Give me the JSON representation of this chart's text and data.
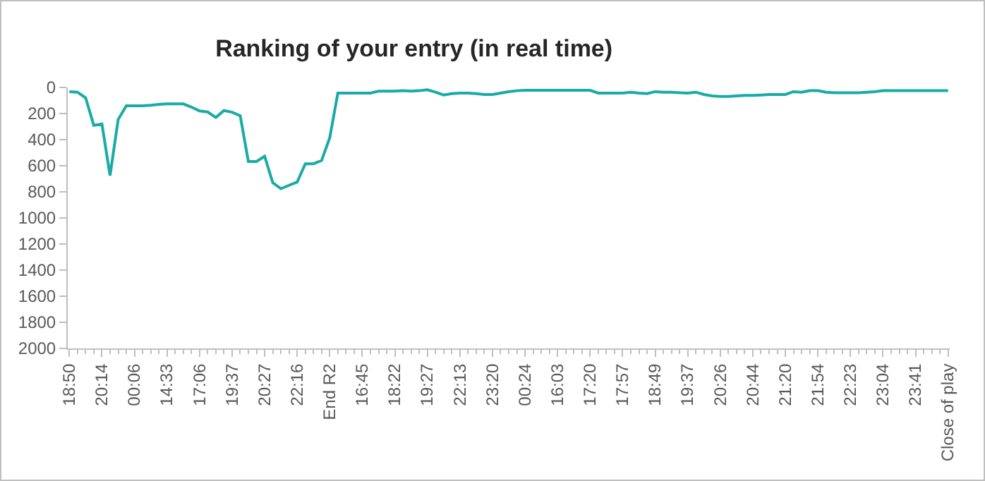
{
  "chart_data": {
    "type": "line",
    "title": "Ranking of your entry (in real time)",
    "categories": [
      "18:50",
      null,
      null,
      null,
      "20:14",
      null,
      null,
      null,
      "00:06",
      null,
      null,
      null,
      "14:33",
      null,
      null,
      null,
      "17:06",
      null,
      null,
      null,
      "19:37",
      null,
      null,
      null,
      "20:27",
      null,
      null,
      null,
      "22:16",
      null,
      null,
      null,
      "End R2",
      null,
      null,
      null,
      "16:45",
      null,
      null,
      null,
      "18:22",
      null,
      null,
      null,
      "19:27",
      null,
      null,
      null,
      "22:13",
      null,
      null,
      null,
      "23:20",
      null,
      null,
      null,
      "00:24",
      null,
      null,
      null,
      "16:03",
      null,
      null,
      null,
      "17:20",
      null,
      null,
      null,
      "17:57",
      null,
      null,
      null,
      "18:49",
      null,
      null,
      null,
      "19:37",
      null,
      null,
      null,
      "20:26",
      null,
      null,
      null,
      "20:44",
      null,
      null,
      null,
      "21:20",
      null,
      null,
      null,
      "21:54",
      null,
      null,
      null,
      "22:23",
      null,
      null,
      null,
      "23:04",
      null,
      null,
      null,
      "23:41",
      null,
      null,
      null,
      "Close of play"
    ],
    "series": [
      {
        "color": "#1aaba6",
        "values": [
          32,
          36,
          80,
          290,
          280,
          675,
          245,
          140,
          140,
          140,
          137,
          130,
          126,
          126,
          126,
          150,
          180,
          188,
          230,
          177,
          190,
          217,
          567,
          567,
          527,
          730,
          776,
          750,
          725,
          585,
          585,
          560,
          386,
          43,
          43,
          43,
          43,
          43,
          29,
          29,
          29,
          25,
          29,
          25,
          18,
          36,
          58,
          47,
          43,
          43,
          47,
          54,
          54,
          43,
          32,
          25,
          22,
          22,
          22,
          22,
          22,
          22,
          22,
          22,
          22,
          43,
          43,
          43,
          43,
          36,
          43,
          47,
          32,
          36,
          36,
          40,
          43,
          36,
          54,
          65,
          69,
          69,
          65,
          61,
          61,
          58,
          54,
          54,
          54,
          32,
          36,
          25,
          25,
          36,
          40,
          40,
          40,
          40,
          36,
          32,
          25,
          25,
          25,
          25,
          25,
          25,
          25,
          25,
          25
        ]
      }
    ],
    "ylim": [
      2000,
      0
    ],
    "yticks": [
      0,
      200,
      400,
      600,
      800,
      1000,
      1200,
      1400,
      1600,
      1800,
      2000
    ],
    "grid": false,
    "legend": false,
    "marker": "none",
    "line_style": "solid"
  }
}
